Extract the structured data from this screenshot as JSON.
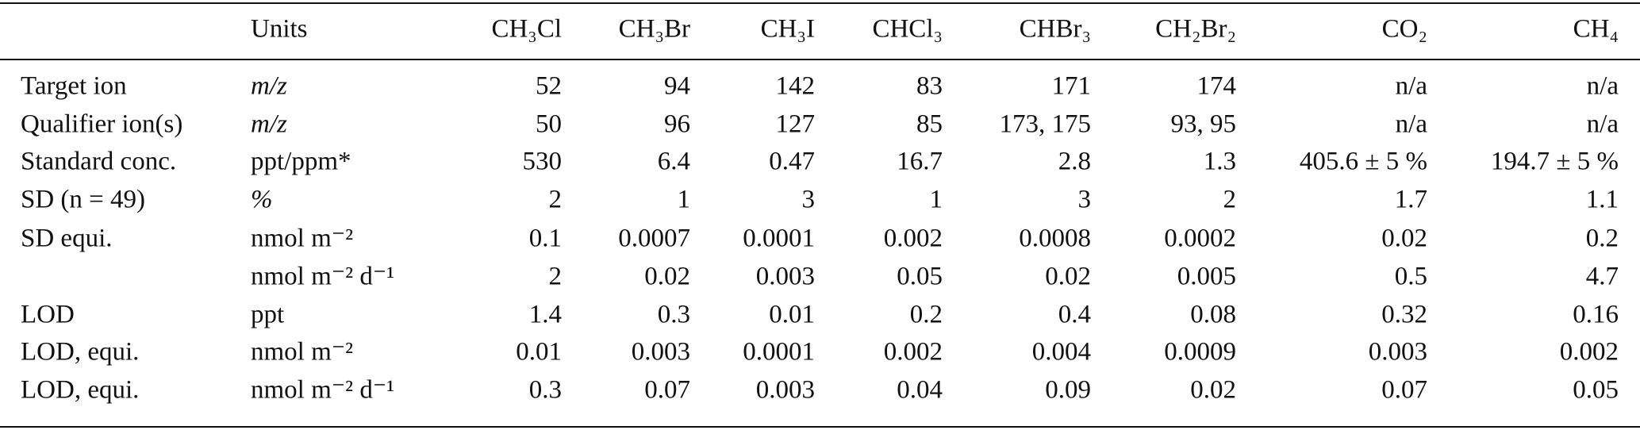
{
  "table": {
    "header": {
      "units": "Units",
      "columns": [
        "CH₃Cl",
        "CH₃Br",
        "CH₃I",
        "CHCl₃",
        "CHBr₃",
        "CH₂Br₂",
        "CO₂",
        "CH₄"
      ]
    },
    "rows": [
      {
        "label": "Target ion",
        "units": "m/z",
        "values": [
          "52",
          "94",
          "142",
          "83",
          "171",
          "174",
          "n/a",
          "n/a"
        ]
      },
      {
        "label": "Qualifier ion(s)",
        "units": "m/z",
        "values": [
          "50",
          "96",
          "127",
          "85",
          "173, 175",
          "93, 95",
          "n/a",
          "n/a"
        ]
      },
      {
        "label": "Standard conc.",
        "units": "ppt/ppm*",
        "values": [
          "530",
          "6.4",
          "0.47",
          "16.7",
          "2.8",
          "1.3",
          "405.6 ± 5 %",
          "194.7 ± 5 %"
        ]
      },
      {
        "label": "SD (n = 49)",
        "units": "%",
        "values": [
          "2",
          "1",
          "3",
          "1",
          "3",
          "2",
          "1.7",
          "1.1"
        ]
      },
      {
        "label": "SD equi.",
        "units": "nmol m⁻²",
        "values": [
          "0.1",
          "0.0007",
          "0.0001",
          "0.002",
          "0.0008",
          "0.0002",
          "0.02",
          "0.2"
        ]
      },
      {
        "units": "nmol m⁻² d⁻¹",
        "values": [
          "2",
          "0.02",
          "0.003",
          "0.05",
          "0.02",
          "0.005",
          "0.5",
          "4.7"
        ]
      },
      {
        "label": "LOD",
        "units": "ppt",
        "values": [
          "1.4",
          "0.3",
          "0.01",
          "0.2",
          "0.4",
          "0.08",
          "0.32",
          "0.16"
        ]
      },
      {
        "label": "LOD, equi.",
        "units": "nmol m⁻²",
        "values": [
          "0.01",
          "0.003",
          "0.0001",
          "0.002",
          "0.004",
          "0.0009",
          "0.003",
          "0.002"
        ]
      },
      {
        "label": "LOD, equi.",
        "units": "nmol m⁻² d⁻¹",
        "values": [
          "0.3",
          "0.07",
          "0.003",
          "0.04",
          "0.09",
          "0.02",
          "0.07",
          "0.05"
        ]
      }
    ]
  }
}
